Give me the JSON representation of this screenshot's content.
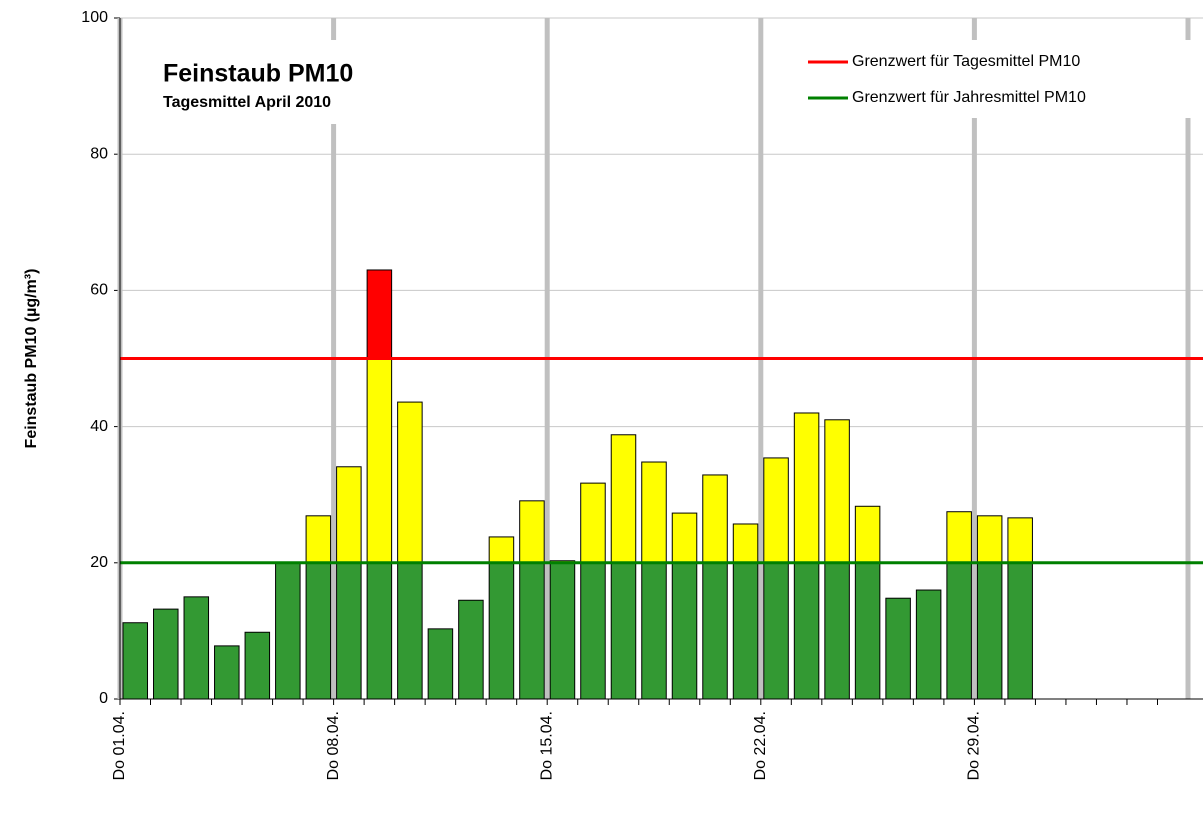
{
  "chart_data": {
    "type": "bar",
    "title": "Feinstaub PM10",
    "subtitle": "Tagesmittel April 2010",
    "y_label": "Feinstaub PM10 (µg/m³)",
    "categories": [
      "Do 01.04.",
      null,
      null,
      null,
      null,
      null,
      null,
      "Do 08.04.",
      null,
      null,
      null,
      null,
      null,
      null,
      "Do 15.04.",
      null,
      null,
      null,
      null,
      null,
      null,
      "Do 22.04.",
      null,
      null,
      null,
      null,
      null,
      null,
      "Do 29.04.",
      null,
      null,
      null,
      null,
      null,
      null
    ],
    "values": [
      11.2,
      13.2,
      15.0,
      7.8,
      9.8,
      20.0,
      26.9,
      34.1,
      63.0,
      43.6,
      10.3,
      14.5,
      23.8,
      29.1,
      20.3,
      31.7,
      38.8,
      34.8,
      27.3,
      32.9,
      25.7,
      35.4,
      42.0,
      41.0,
      28.3,
      14.8,
      16.0,
      27.5,
      26.9,
      26.6,
      null,
      null,
      null,
      null,
      null
    ],
    "colors": [
      "#339933",
      "#ffff00",
      "#ff0000"
    ],
    "reference_lines": [
      {
        "name": "Grenzwert für Tagesmittel PM10",
        "value": 50,
        "color": "#ff0000"
      },
      {
        "name": "Grenzwert für Jahresmittel PM10",
        "value": 20,
        "color": "#008000"
      }
    ],
    "ylim": [
      0,
      100
    ],
    "yticks": [
      0,
      20,
      40,
      60,
      80,
      100
    ],
    "grid": true
  }
}
